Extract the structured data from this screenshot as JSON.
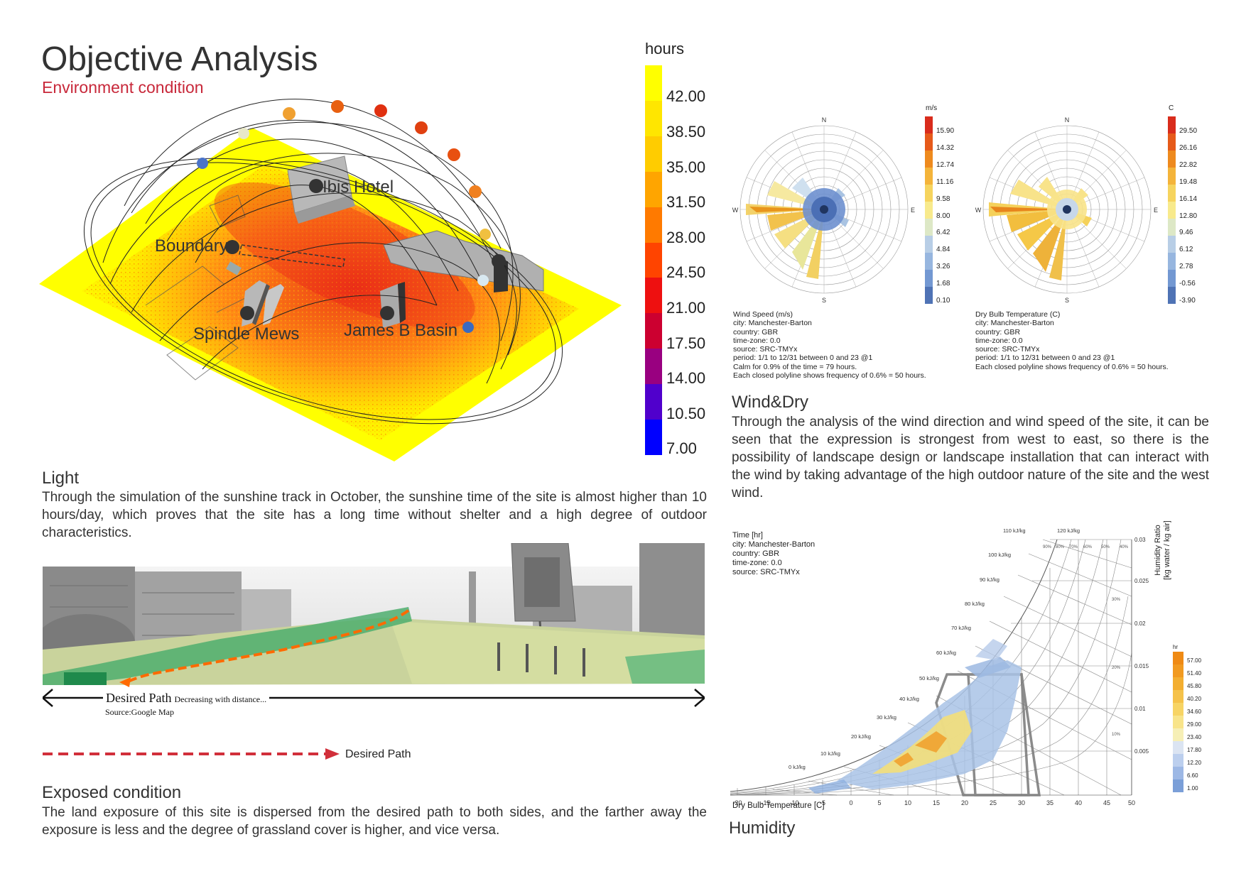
{
  "header": {
    "title": "Objective Analysis",
    "subtitle": "Environment condition"
  },
  "sun_legend": {
    "unit": "hours",
    "values": [
      "42.00",
      "38.50",
      "35.00",
      "31.50",
      "28.00",
      "24.50",
      "21.00",
      "17.50",
      "14.00",
      "10.50",
      "7.00"
    ]
  },
  "site_labels": {
    "ibis": "Ibis Hotel",
    "boundary": "Boundary",
    "spindle": "Spindle Mews",
    "james": "James B Basin"
  },
  "light": {
    "heading": "Light",
    "body": "Through the simulation of the sunshine track in October, the sunshine time of the site is almost higher than 10 hours/day, which proves that the site has a long time without shelter and a high degree of outdoor characteristics."
  },
  "photo": {
    "path_label": "Desired Path",
    "path_note": "Decreasing with distance...",
    "source": "Source:Google Map",
    "legend_label": "Desired Path"
  },
  "exposed": {
    "heading": "Exposed condition",
    "body": "The land exposure of this site is dispersed from the desired path to both sides, and the farther away the exposure is less and the degree of grassland cover is higher, and vice versa."
  },
  "wind_rose": {
    "unit": "m/s",
    "values": [
      "15.90",
      "14.32",
      "12.74",
      "11.16",
      "9.58",
      "8.00",
      "6.42",
      "4.84",
      "3.26",
      "1.68",
      "0.10"
    ],
    "meta": "Wind Speed (m/s)\ncity: Manchester-Barton\ncountry: GBR\ntime-zone: 0.0\nsource: SRC-TMYx\nperiod: 1/1 to 12/31 between 0 and 23 @1\nCalm for 0.9% of the time = 79 hours.\nEach closed polyline shows frequency of 0.6% = 50 hours.",
    "compass": {
      "n": "N",
      "e": "E",
      "s": "S",
      "w": "W"
    }
  },
  "temp_rose": {
    "unit": "C",
    "values": [
      "29.50",
      "26.16",
      "22.82",
      "19.48",
      "16.14",
      "12.80",
      "9.46",
      "6.12",
      "2.78",
      "-0.56",
      "-3.90"
    ],
    "meta": "Dry Bulb Temperature (C)\ncity: Manchester-Barton\ncountry: GBR\ntime-zone: 0.0\nsource: SRC-TMYx\nperiod: 1/1 to 12/31 between 0 and 23 @1\nEach closed polyline shows frequency of 0.6% = 50 hours.",
    "compass": {
      "n": "N",
      "e": "E",
      "s": "S",
      "w": "W"
    }
  },
  "wind_dry": {
    "heading": "Wind&Dry",
    "body": "Through the analysis of the wind direction and wind speed of the site, it can be seen that the expression is strongest from west to east, so there is the possibility of landscape design or landscape installation that can interact with the wind by taking advantage of the high outdoor nature of the site and the west wind."
  },
  "psychro": {
    "meta": "Time [hr]\ncity: Manchester-Barton\ncountry: GBR\ntime-zone: 0.0\nsource: SRC-TMYx",
    "x_ticks": [
      "-20",
      "-15",
      "-10",
      "-5",
      "0",
      "5",
      "10",
      "15",
      "20",
      "25",
      "30",
      "35",
      "40",
      "45",
      "50"
    ],
    "y_ticks": [
      "0.03",
      "0.025",
      "0.02",
      "0.015",
      "0.01",
      "0.005"
    ],
    "enthalpy": [
      "0 kJ/kg",
      "10 kJ/kg",
      "20 kJ/kg",
      "30 kJ/kg",
      "40 kJ/kg",
      "50 kJ/kg",
      "60 kJ/kg",
      "70 kJ/kg",
      "80 kJ/kg",
      "90 kJ/kg",
      "100 kJ/kg",
      "110 kJ/kg",
      "120 kJ/kg"
    ],
    "rh": [
      "90%",
      "80%",
      "70%",
      "60%",
      "50%",
      "40%",
      "30%",
      "20%",
      "10%"
    ],
    "xlabel": "Dry Bulb Temperature [C]",
    "ylabel": "Humidity Ratio\n[kg water / kg air]",
    "legend_unit": "hr",
    "legend_values": [
      "57.00",
      "51.40",
      "45.80",
      "40.20",
      "34.60",
      "29.00",
      "23.40",
      "17.80",
      "12.20",
      "6.60",
      "1.00"
    ]
  },
  "humidity": {
    "heading": "Humidity"
  },
  "colors": {
    "accent_red": "#c8283a",
    "heat_yellow": "#ffff00",
    "heat_red": "#e8171a",
    "heat_blue": "#0000ff",
    "wind_orange": "#f0a02a",
    "wind_blue": "#5b82c6",
    "path_orange": "#ff6a00",
    "path_green": "#2ea060"
  }
}
